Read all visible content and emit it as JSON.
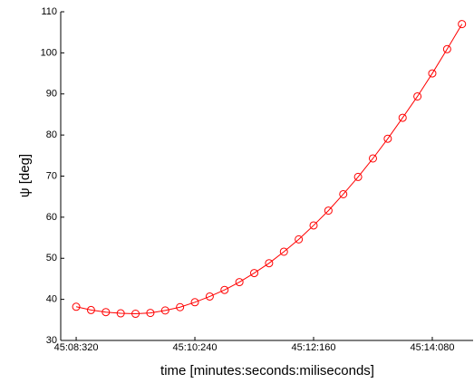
{
  "chart_data": {
    "type": "line",
    "xlabel": "time [minutes:seconds:miliseconds]",
    "ylabel": "ψ [deg]",
    "x": [
      2708.32,
      2708.56,
      2708.8,
      2709.04,
      2709.28,
      2709.52,
      2709.76,
      2710.0,
      2710.24,
      2710.48,
      2710.72,
      2710.96,
      2711.2,
      2711.44,
      2711.68,
      2711.92,
      2712.16,
      2712.4,
      2712.64,
      2712.88,
      2713.12,
      2713.36,
      2713.6,
      2713.84,
      2714.08,
      2714.32,
      2714.56
    ],
    "series": [
      {
        "color": "#ff0000",
        "values": [
          38.2,
          37.4,
          36.9,
          36.6,
          36.5,
          36.7,
          37.3,
          38.1,
          39.3,
          40.7,
          42.3,
          44.2,
          46.4,
          48.8,
          51.6,
          54.6,
          58.0,
          61.6,
          65.6,
          69.8,
          74.3,
          79.1,
          84.2,
          89.4,
          95.0,
          100.9,
          107.0
        ]
      }
    ],
    "xlim": [
      2708.07,
      2714.74
    ],
    "xticks": [
      {
        "value": 2708.32,
        "label": "45:08:320"
      },
      {
        "value": 2710.24,
        "label": "45:10:240"
      },
      {
        "value": 2712.16,
        "label": "45:12:160"
      },
      {
        "value": 2714.08,
        "label": "45:14:080"
      }
    ],
    "ylim": [
      30,
      110
    ],
    "yticks": [
      30,
      40,
      50,
      60,
      70,
      80,
      90,
      100,
      110
    ],
    "marker": "circle"
  }
}
